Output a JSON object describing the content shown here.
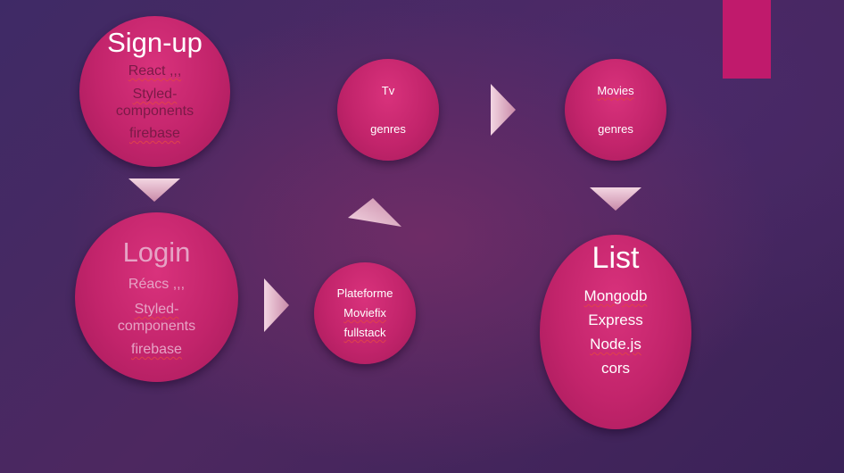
{
  "colors": {
    "node_fill": "#c2246b",
    "accent_bar": "#c01a6c",
    "arrow_fill": "#f0c8d6"
  },
  "nodes": {
    "signup": {
      "title": "Sign-up",
      "line1": "React ,,,",
      "line2": "Styled-",
      "line3": "components",
      "line4": "firebase"
    },
    "login": {
      "title": "Login",
      "line1": "Réacs ,,,",
      "line2": "Styled-",
      "line3": "components",
      "line4": "firebase"
    },
    "platform": {
      "line1": "Plateforme",
      "line2": "Moviefix",
      "line3": "fullstack"
    },
    "tv": {
      "line1": "Tv",
      "line2": "genres"
    },
    "movies": {
      "line1": "Movies",
      "line2": "genres"
    },
    "list": {
      "title": "List",
      "line1": "Mongodb",
      "line2": "Express",
      "line3": "Node.js",
      "line4": "cors"
    }
  },
  "arrows": [
    {
      "name": "signup-to-login-arrow",
      "direction": "down"
    },
    {
      "name": "login-to-platform-arrow",
      "direction": "right"
    },
    {
      "name": "platform-to-tv-arrow",
      "direction": "up-right"
    },
    {
      "name": "tv-to-movies-arrow",
      "direction": "right"
    },
    {
      "name": "movies-to-list-arrow",
      "direction": "down"
    }
  ]
}
